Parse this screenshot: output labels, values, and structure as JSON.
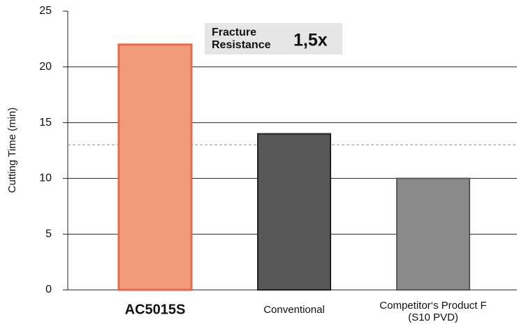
{
  "chart_data": {
    "type": "bar",
    "ylabel": "Cutting Time (min)",
    "categories": [
      "AC5015S",
      "Conventional",
      "Competitor‘s Product F\n(S10 PVD)"
    ],
    "values": [
      22,
      14,
      10
    ],
    "colors": [
      "#f29b7b",
      "#575757",
      "#8a8a8a"
    ],
    "edge_colors": [
      "#e8694a",
      "#222222",
      "#5a5a5a"
    ],
    "ylim": [
      0,
      25
    ],
    "yticks": [
      0,
      5,
      10,
      15,
      20,
      25
    ],
    "grid": true,
    "reference_line": 13,
    "annotation": {
      "label": "Fracture\nResistance",
      "value": "1,5x"
    }
  }
}
